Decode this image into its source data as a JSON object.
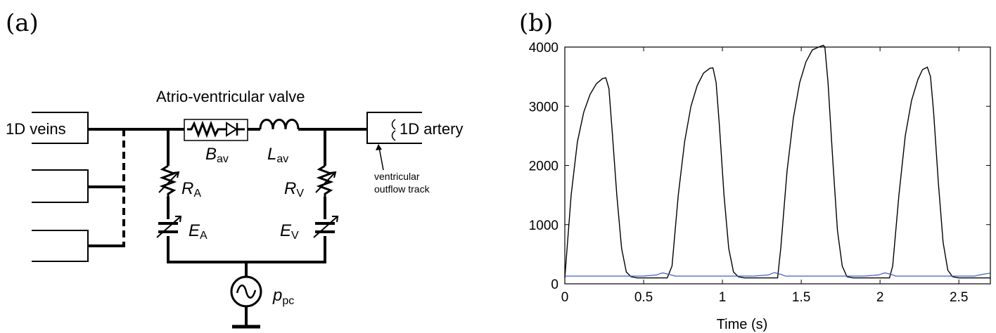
{
  "panel_a": {
    "panel_label": "(a)",
    "valve_title": "Atrio-ventricular valve",
    "veins_label": "1D veins",
    "artery_label": "1D artery",
    "outflow_line1": "ventricular",
    "outflow_line2": "outflow track",
    "B_main": "B",
    "B_sub": "av",
    "L_main": "L",
    "L_sub": "av",
    "RA_main": "R",
    "RA_sub": "A",
    "RV_main": "R",
    "RV_sub": "V",
    "EA_main": "E",
    "EA_sub": "A",
    "EV_main": "E",
    "EV_sub": "V",
    "p_main": "p",
    "p_sub": "pc"
  },
  "panel_b": {
    "panel_label": "(b)"
  },
  "chart_data": {
    "type": "line",
    "xlabel": "Time (s)",
    "ylabel": "",
    "xlim": [
      0,
      2.7
    ],
    "ylim": [
      0,
      4000
    ],
    "xticks": [
      0,
      0.5,
      1,
      1.5,
      2,
      2.5
    ],
    "xtick_labels": [
      "0",
      "0.5",
      "1",
      "1.5",
      "2",
      "2.5"
    ],
    "yticks": [
      0,
      1000,
      2000,
      3000,
      4000
    ],
    "ytick_labels": [
      "0",
      "1000",
      "2000",
      "3000",
      "4000"
    ],
    "colors": {
      "black": "#000000",
      "blue": "#3a5fd0"
    },
    "series": [
      {
        "color": "#000000",
        "x": [
          0.0,
          0.04,
          0.08,
          0.12,
          0.16,
          0.2,
          0.24,
          0.26,
          0.28,
          0.3,
          0.33,
          0.36,
          0.39,
          0.42,
          0.46,
          0.55,
          0.65,
          0.68,
          0.72,
          0.76,
          0.8,
          0.84,
          0.88,
          0.92,
          0.94,
          0.96,
          0.98,
          1.01,
          1.04,
          1.07,
          1.1,
          1.14,
          1.25,
          1.35,
          1.37,
          1.41,
          1.45,
          1.49,
          1.53,
          1.57,
          1.61,
          1.64,
          1.65,
          1.67,
          1.7,
          1.73,
          1.76,
          1.79,
          1.83,
          1.95,
          2.06,
          2.08,
          2.12,
          2.16,
          2.2,
          2.24,
          2.27,
          2.3,
          2.32,
          2.34,
          2.37,
          2.4,
          2.43,
          2.46,
          2.5,
          2.6,
          2.7
        ],
        "y": [
          100,
          1500,
          2400,
          2900,
          3200,
          3380,
          3470,
          3480,
          3300,
          2600,
          1500,
          600,
          200,
          120,
          100,
          100,
          100,
          300,
          1500,
          2400,
          3000,
          3350,
          3560,
          3640,
          3650,
          3400,
          2700,
          1500,
          600,
          200,
          120,
          100,
          100,
          100,
          600,
          1900,
          2800,
          3400,
          3750,
          3950,
          4000,
          4030,
          4000,
          3400,
          2100,
          900,
          300,
          120,
          100,
          100,
          100,
          300,
          1500,
          2500,
          3100,
          3450,
          3620,
          3660,
          3500,
          2900,
          1700,
          700,
          230,
          120,
          100,
          100,
          100
        ]
      },
      {
        "color": "#3a5fd0",
        "x": [
          0.0,
          0.5,
          0.58,
          0.62,
          0.66,
          0.7,
          1.2,
          1.29,
          1.33,
          1.37,
          1.4,
          1.9,
          1.99,
          2.03,
          2.07,
          2.1,
          2.6,
          2.65,
          2.7
        ],
        "y": [
          130,
          130,
          150,
          185,
          160,
          130,
          130,
          150,
          190,
          160,
          130,
          130,
          150,
          185,
          160,
          130,
          130,
          160,
          180
        ]
      }
    ]
  }
}
